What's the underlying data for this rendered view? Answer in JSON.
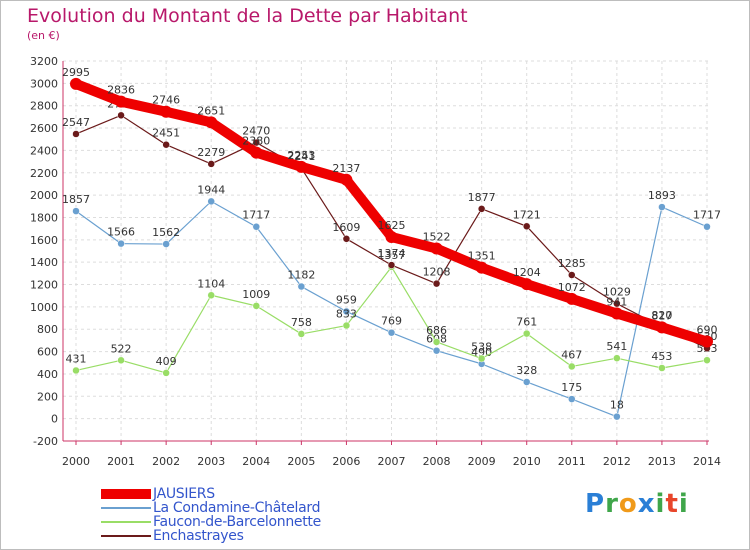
{
  "chart_data": {
    "type": "line",
    "title": "Evolution du Montant de la Dette par Habitant",
    "subtitle": "(en €)",
    "x": [
      "2000",
      "2001",
      "2002",
      "2003",
      "2004",
      "2005",
      "2006",
      "2007",
      "2008",
      "2009",
      "2010",
      "2011",
      "2012",
      "2013",
      "2014"
    ],
    "ylim": [
      -200,
      3200
    ],
    "yticks": [
      -200,
      0,
      200,
      400,
      600,
      800,
      1000,
      1200,
      1400,
      1600,
      1800,
      2000,
      2200,
      2400,
      2600,
      2800,
      3000,
      3200
    ],
    "grid": true,
    "legend_position": "bottom-left",
    "series": [
      {
        "name": "JAUSIERS",
        "color": "#ee0000",
        "values": [
          2995,
          2836,
          2746,
          2651,
          2380,
          2253,
          2137,
          1625,
          1522,
          1351,
          1204,
          1072,
          941,
          817,
          690
        ]
      },
      {
        "name": "La Condamine-Châtelard",
        "color": "#6aa0d0",
        "values": [
          1857,
          1566,
          1562,
          1944,
          1717,
          1182,
          959,
          769,
          608,
          490,
          328,
          175,
          18,
          1893,
          1717
        ]
      },
      {
        "name": "Faucon-de-Barcelonnette",
        "color": "#99dd66",
        "values": [
          431,
          522,
          409,
          1104,
          1009,
          758,
          833,
          1357,
          686,
          538,
          761,
          467,
          541,
          453,
          523
        ]
      },
      {
        "name": "Enchastrayes",
        "color": "#6b1a1a",
        "values": [
          2547,
          2714,
          2451,
          2279,
          2470,
          2241,
          1609,
          1374,
          1208,
          1877,
          1721,
          1285,
          1029,
          820,
          630
        ]
      }
    ]
  },
  "brand": {
    "p": "P",
    "r": "r",
    "o": "o",
    "x": "x",
    "i": "i",
    "t": "t",
    "i2": "i"
  }
}
